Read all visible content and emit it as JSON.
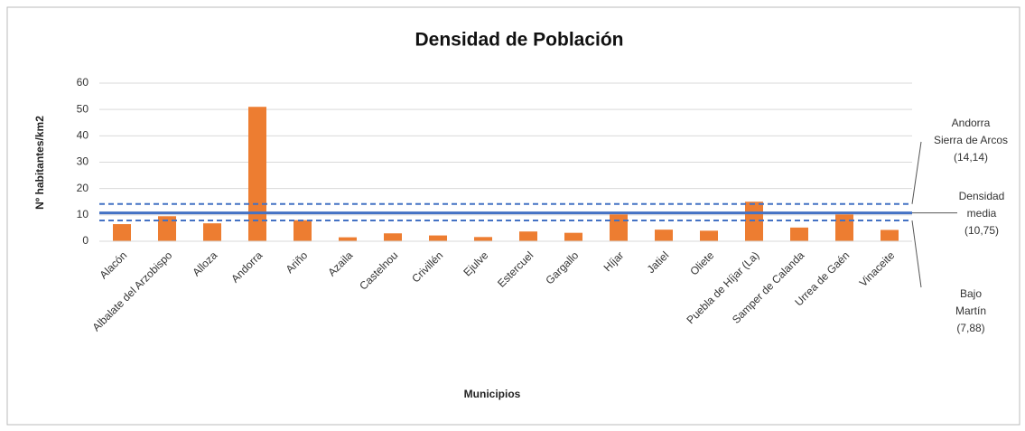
{
  "chart_data": {
    "type": "bar",
    "title": "Densidad de Población",
    "y_label": "Nº habitantes/km2",
    "x_label": "Municipios",
    "categories": [
      "Alacón",
      "Albalate del Arzobispo",
      "Alloza",
      "Andorra",
      "Ariño",
      "Azaila",
      "Castelnou",
      "Crivillén",
      "Ejulve",
      "Estercuel",
      "Gargallo",
      "Híjar",
      "Jatiel",
      "Oliete",
      "Puebla de Híjar (La)",
      "Samper de Calanda",
      "Urrea de Gaén",
      "Vinaceite"
    ],
    "values": [
      6.5,
      9.5,
      6.8,
      51,
      8,
      1.5,
      3,
      2.2,
      1.6,
      3.7,
      3.2,
      10.2,
      4.4,
      4,
      15,
      5.2,
      10.2,
      4.3
    ],
    "color": "#ed7d31",
    "ylim": [
      0,
      60
    ],
    "yticks": [
      0,
      10,
      20,
      30,
      40,
      50,
      60
    ],
    "grid": true,
    "reference_lines": [
      {
        "value": 14.14,
        "style": "dashed",
        "color": "#4472c4",
        "label": [
          "Andorra",
          "Sierra de Arcos",
          "(14,14)"
        ]
      },
      {
        "value": 10.75,
        "style": "solid",
        "color": "#4472c4",
        "label": [
          "Densidad",
          "media",
          "(10,75)"
        ]
      },
      {
        "value": 7.88,
        "style": "dashed",
        "color": "#4472c4",
        "label": [
          "Bajo",
          "Martín",
          "(7,88)"
        ]
      }
    ]
  }
}
